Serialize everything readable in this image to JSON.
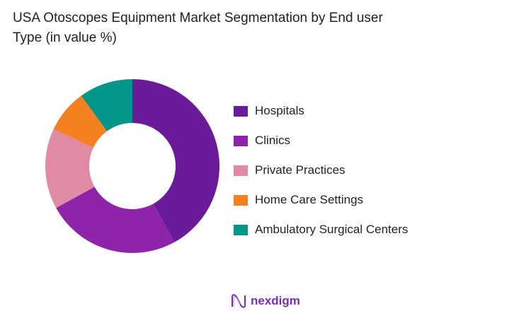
{
  "chart_data": {
    "type": "pie",
    "title": "USA Otoscopes Equipment Market Segmentation by End user Type (in value %)",
    "categories": [
      "Hospitals",
      "Clinics",
      "Private Practices",
      "Home Care Settings",
      "Ambulatory Surgical Centers"
    ],
    "values": [
      42,
      25,
      15,
      8,
      10
    ],
    "colors": [
      "#6a1b9a",
      "#8e24aa",
      "#e08aa4",
      "#f5801f",
      "#00968a"
    ],
    "legend_position": "right",
    "donut": true
  },
  "brand": {
    "name": "nexdigm"
  }
}
